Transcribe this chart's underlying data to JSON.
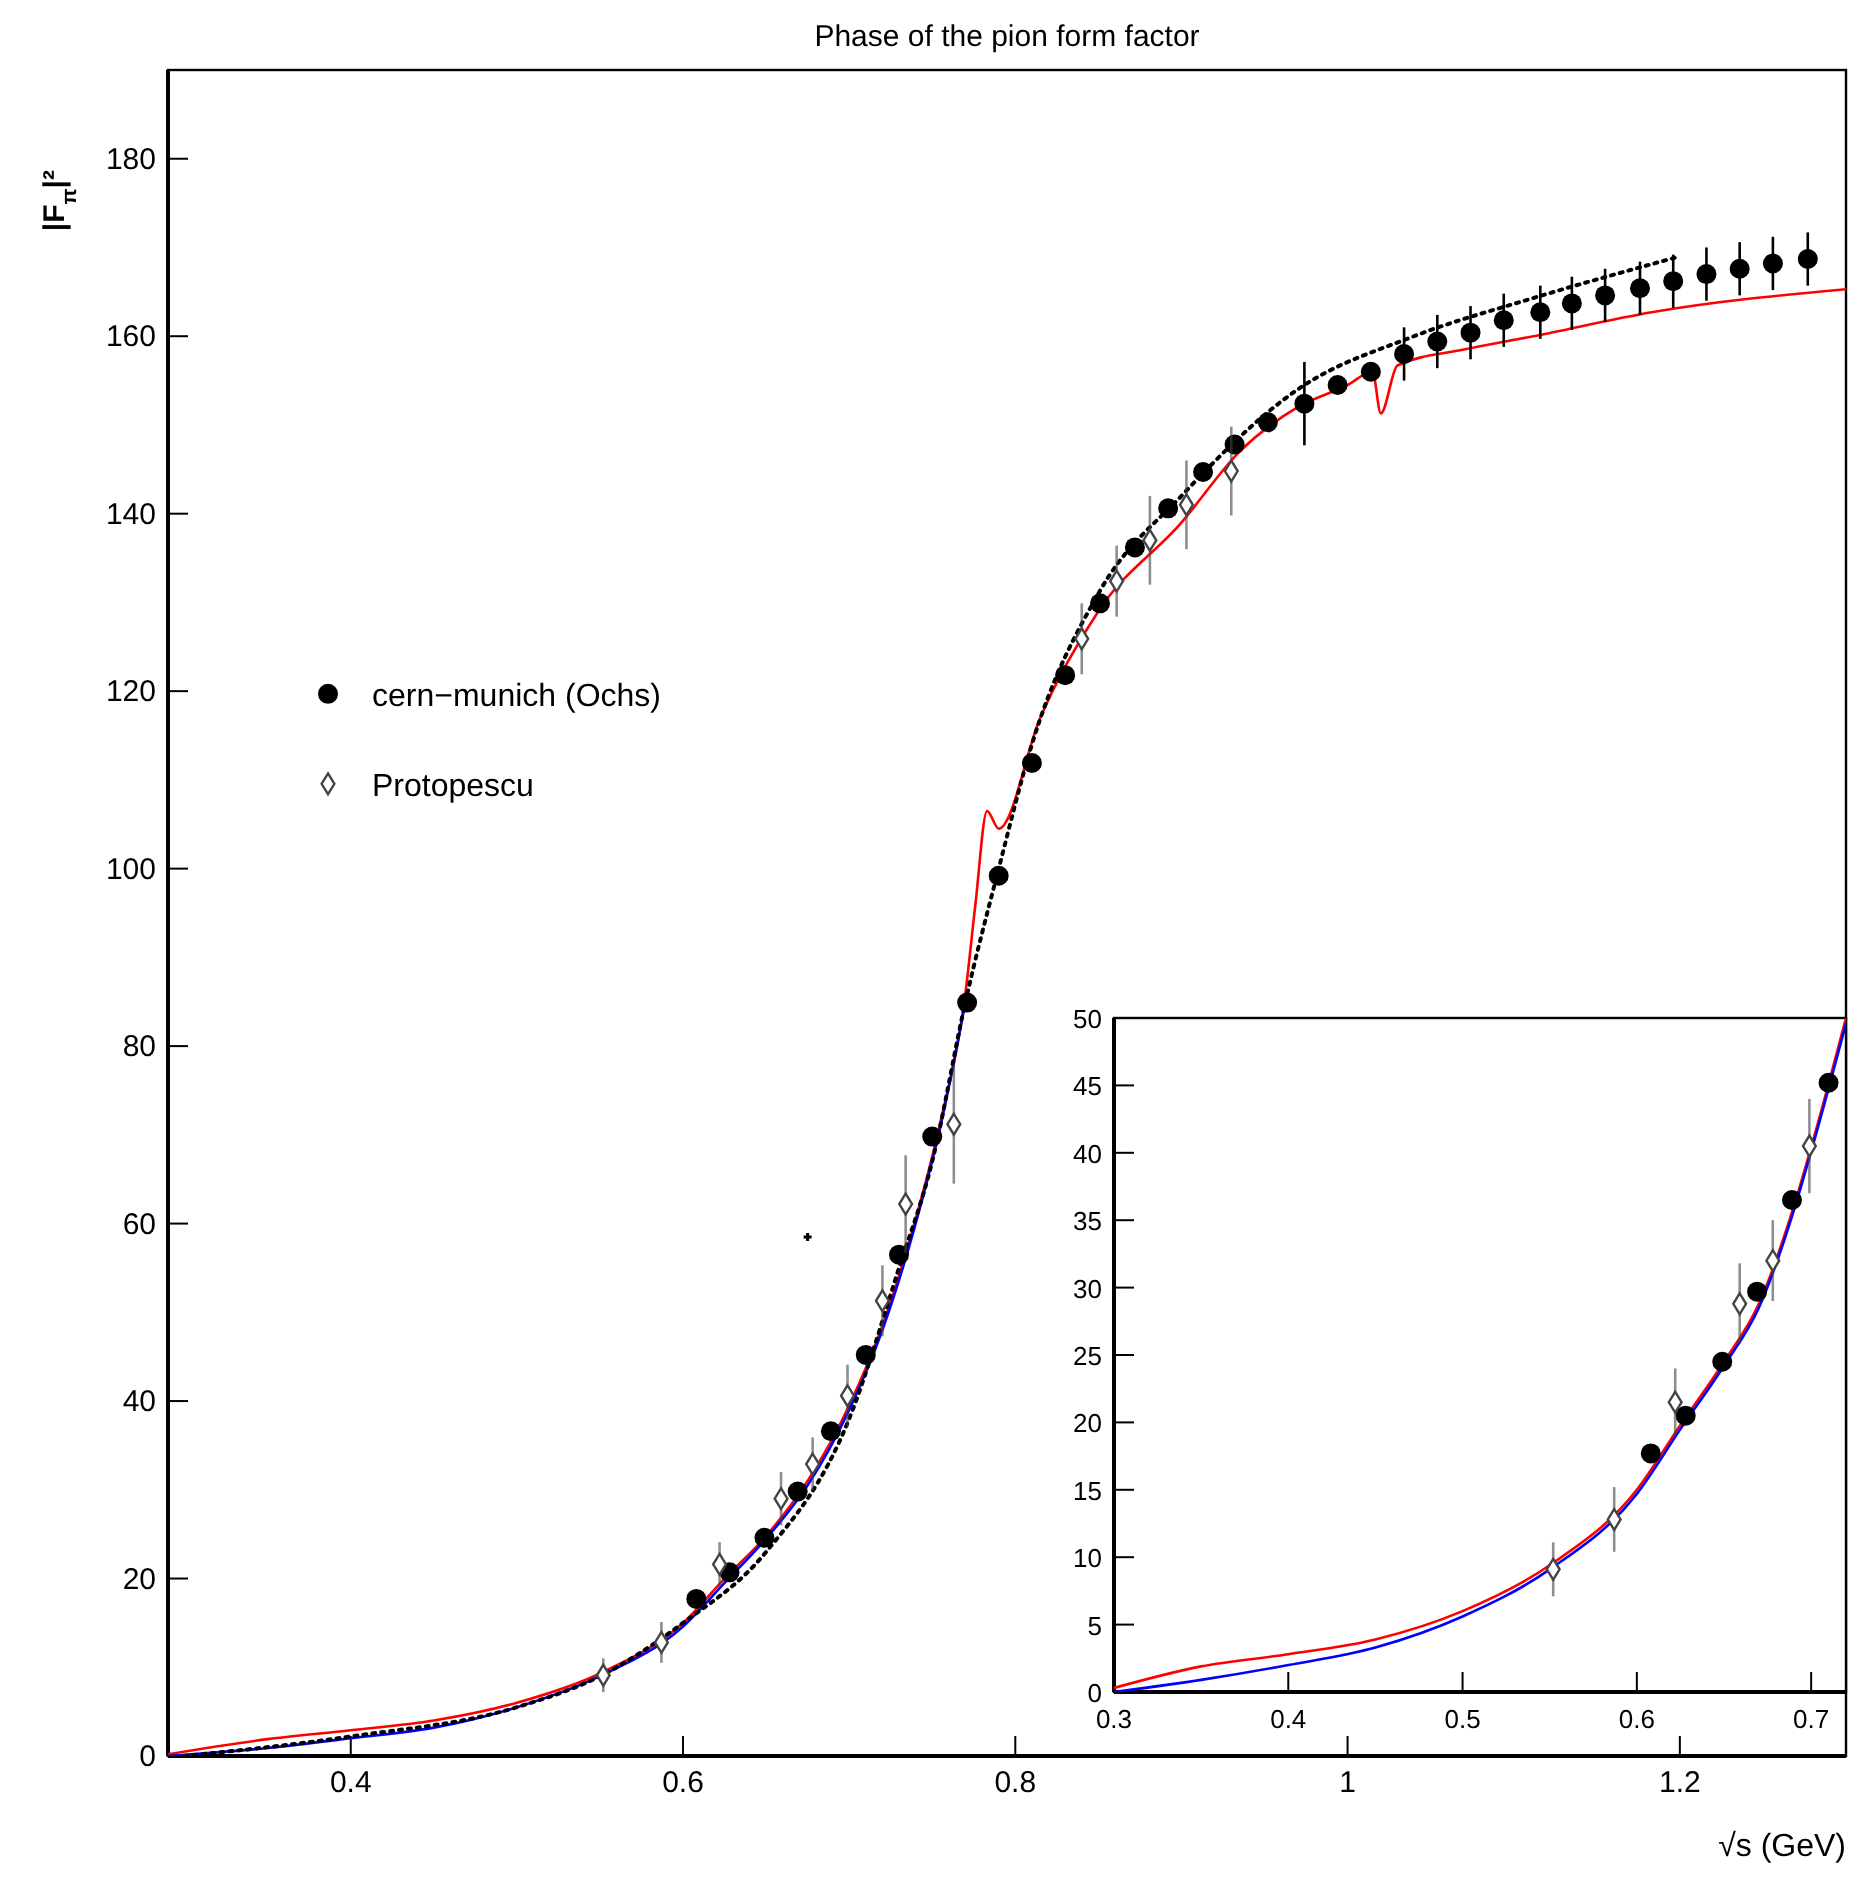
{
  "chart_data": [
    {
      "type": "scatter",
      "title": "Phase of the pion form factor",
      "xlabel": "√s (GeV)",
      "ylabel": "|F$_{π}$|²",
      "xlim": [
        0.29,
        1.3
      ],
      "xticks": [
        0.4,
        0.6,
        0.8,
        1,
        1.2
      ],
      "ylim": [
        0,
        190
      ],
      "yticks": [
        0,
        20,
        40,
        60,
        80,
        100,
        120,
        140,
        160,
        180
      ],
      "legend": "left",
      "grid": false,
      "series": [
        {
          "type": "line",
          "color": "#ff0000",
          "line_style": "solid",
          "x": [
            0.29,
            0.35,
            0.4,
            0.45,
            0.5,
            0.55,
            0.6,
            0.625,
            0.65,
            0.675,
            0.7,
            0.72,
            0.74,
            0.755,
            0.77,
            0.776,
            0.783,
            0.79,
            0.815,
            0.85,
            0.9,
            0.935,
            0.97,
            1.0,
            1.015,
            1.02,
            1.03,
            1.07,
            1.112,
            1.183,
            1.3
          ],
          "values": [
            0.2,
            1.9,
            2.9,
            4.0,
            6.0,
            9.3,
            15,
            20,
            24.8,
            31,
            39.5,
            48.5,
            60.5,
            71.5,
            86,
            96,
            106.5,
            104.5,
            117,
            129,
            139,
            147,
            152,
            154.5,
            156,
            151.3,
            156.7,
            158.5,
            160,
            162.7,
            165.3
          ]
        },
        {
          "type": "line",
          "color": "#0000ff",
          "line_style": "solid",
          "x": [
            0.29,
            0.35,
            0.4,
            0.45,
            0.5,
            0.55,
            0.6,
            0.625,
            0.65,
            0.675,
            0.7,
            0.72,
            0.74,
            0.755,
            0.77
          ],
          "values": [
            0,
            0.9,
            2.0,
            3.2,
            5.5,
            9.0,
            14.6,
            19.5,
            24.5,
            30.5,
            39,
            48,
            60,
            71,
            85
          ]
        },
        {
          "type": "line",
          "color": "#000000",
          "line_style": "dotted",
          "x": [
            0.3,
            0.4,
            0.5,
            0.55,
            0.6,
            0.65,
            0.7,
            0.73,
            0.75,
            0.77,
            0.79,
            0.81,
            0.85,
            0.9,
            0.97,
            1.04,
            1.11,
            1.2
          ],
          "values": [
            0,
            2.2,
            5.5,
            9,
            15,
            23,
            38,
            55,
            67,
            85,
            100,
            114,
            131,
            142,
            154,
            160,
            164.2,
            169
          ]
        },
        {
          "name": "cern−munich (Ochs)",
          "color": "#000000",
          "marker": "circle",
          "x": [
            0.608,
            0.628,
            0.649,
            0.669,
            0.689,
            0.71,
            0.73,
            0.75,
            0.771,
            0.79,
            0.81,
            0.83,
            0.851,
            0.872,
            0.892,
            0.913,
            0.932,
            0.952,
            0.974,
            0.994,
            1.014,
            1.034,
            1.054,
            1.074,
            1.094,
            1.116,
            1.135,
            1.155,
            1.176,
            1.196,
            1.216,
            1.236,
            1.256,
            1.277
          ],
          "values": [
            17.7,
            20.7,
            24.6,
            29.8,
            36.6,
            45.2,
            56.5,
            69.8,
            84.9,
            99.2,
            111.9,
            121.8,
            129.9,
            136.2,
            140.6,
            144.7,
            147.8,
            150.3,
            152.4,
            154.5,
            156.0,
            158.0,
            159.4,
            160.4,
            161.8,
            162.7,
            163.7,
            164.6,
            165.4,
            166.2,
            167.0,
            167.6,
            168.2,
            168.7
          ],
          "errors": [
            null,
            null,
            null,
            null,
            null,
            null,
            null,
            null,
            null,
            null,
            null,
            null,
            null,
            null,
            null,
            null,
            null,
            null,
            4.7,
            null,
            null,
            3,
            3,
            3,
            3,
            3,
            3,
            3,
            3,
            3,
            3,
            3,
            3,
            3
          ]
        },
        {
          "name": "Protopescu",
          "color": "#444444",
          "marker": "diamond",
          "x": [
            0.552,
            0.587,
            0.622,
            0.659,
            0.678,
            0.699,
            0.72,
            0.734,
            0.763,
            0.84,
            0.861,
            0.881,
            0.903,
            0.93
          ],
          "values": [
            9.1,
            12.8,
            21.6,
            29.0,
            32.9,
            40.6,
            51.3,
            62.2,
            71.2,
            125.9,
            132.4,
            137.0,
            141.0,
            144.8
          ],
          "errors": [
            1.9,
            2.3,
            2.5,
            3,
            3,
            3.5,
            4,
            5.5,
            6.7,
            4,
            4,
            5,
            5,
            5
          ]
        },
        {
          "color": "#000000",
          "marker": "cross",
          "x": [
            0.675
          ],
          "values": [
            58.5
          ]
        }
      ]
    },
    {
      "type": "scatter",
      "xlim": [
        0.3,
        0.72
      ],
      "xticks": [
        0.3,
        0.4,
        0.5,
        0.6,
        0.7
      ],
      "ylim": [
        0,
        50
      ],
      "yticks": [
        0,
        5,
        10,
        15,
        20,
        25,
        30,
        35,
        40,
        45,
        50
      ],
      "grid": false,
      "series": [
        {
          "type": "line",
          "color": "#ff0000",
          "line_style": "solid",
          "x": [
            0.3,
            0.35,
            0.4,
            0.45,
            0.5,
            0.55,
            0.6,
            0.625,
            0.65,
            0.67,
            0.69,
            0.7,
            0.72
          ],
          "values": [
            0.3,
            1.9,
            2.8,
            3.9,
            6.0,
            9.4,
            15,
            19.8,
            24.5,
            28.8,
            36,
            40.4,
            50
          ]
        },
        {
          "type": "line",
          "color": "#0000ff",
          "line_style": "solid",
          "x": [
            0.3,
            0.35,
            0.4,
            0.45,
            0.5,
            0.55,
            0.6,
            0.625,
            0.65,
            0.67,
            0.69,
            0.7,
            0.72
          ],
          "values": [
            0,
            0.9,
            2.0,
            3.3,
            5.6,
            9.1,
            14.7,
            19.5,
            24.2,
            28.5,
            35.7,
            40.1,
            49.6
          ]
        },
        {
          "color": "#000000",
          "marker": "circle",
          "x": [
            0.608,
            0.628,
            0.649,
            0.669,
            0.689,
            0.71
          ],
          "values": [
            17.7,
            20.5,
            24.5,
            29.7,
            36.5,
            45.2
          ]
        },
        {
          "color": "#444444",
          "marker": "diamond",
          "x": [
            0.552,
            0.587,
            0.622,
            0.659,
            0.678,
            0.699
          ],
          "values": [
            9.1,
            12.8,
            21.5,
            28.8,
            32,
            40.5
          ],
          "errors": [
            2,
            2.4,
            2.5,
            3,
            3,
            3.5
          ]
        }
      ]
    }
  ]
}
